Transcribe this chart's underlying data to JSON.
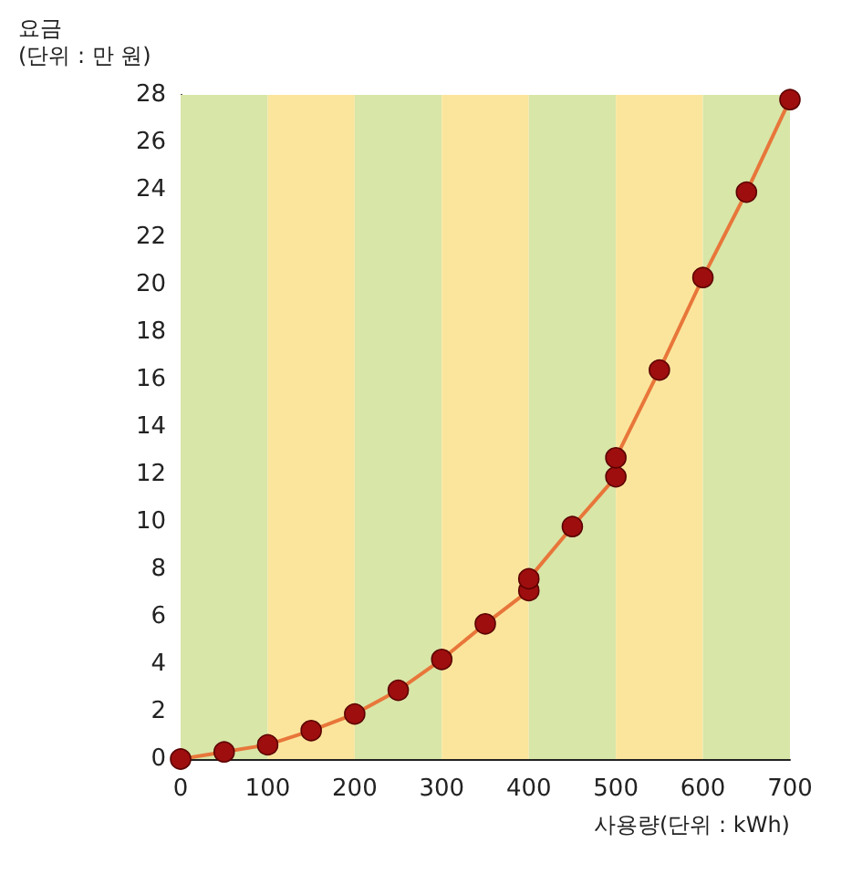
{
  "chart_data": {
    "type": "line",
    "ylabel": "요금\n(단위 : 만 원)",
    "xlabel": "사용량(단위 : kWh)",
    "xlim": [
      0,
      700
    ],
    "xticks": [
      0,
      100,
      200,
      300,
      400,
      500,
      600,
      700
    ],
    "ylim": [
      0,
      28
    ],
    "yticks": [
      0,
      2,
      4,
      6,
      8,
      10,
      12,
      14,
      16,
      18,
      20,
      22,
      24,
      26,
      28
    ],
    "grid": false,
    "marker": "circle",
    "line_style": "solid",
    "series": [
      {
        "color": "#e8763a",
        "x": [
          0,
          50,
          100,
          150,
          200,
          250,
          300,
          350,
          400,
          400,
          450,
          500,
          500,
          550,
          600,
          650,
          700
        ],
        "values": [
          0,
          0.3,
          0.6,
          1.2,
          1.9,
          2.9,
          4.2,
          5.7,
          7.1,
          7.6,
          9.8,
          11.9,
          12.7,
          16.4,
          20.3,
          23.9,
          27.8
        ],
        "colors": [
          "#9e0e0e",
          "#9e0e0e",
          "#9e0e0e",
          "#9e0e0e",
          "#9e0e0e",
          "#9e0e0e",
          "#9e0e0e",
          "#9e0e0e",
          "#9e0e0e",
          "#9e0e0e",
          "#9e0e0e",
          "#9e0e0e",
          "#9e0e0e",
          "#9e0e0e",
          "#9e0e0e",
          "#9e0e0e",
          "#9e0e0e"
        ]
      }
    ],
    "bands": [
      {
        "axis": "x",
        "from": 0,
        "to": 100,
        "color": "#d8e6a8"
      },
      {
        "axis": "x",
        "from": 100,
        "to": 200,
        "color": "#fbe59c"
      },
      {
        "axis": "x",
        "from": 200,
        "to": 300,
        "color": "#d8e6a8"
      },
      {
        "axis": "x",
        "from": 300,
        "to": 400,
        "color": "#fbe59c"
      },
      {
        "axis": "x",
        "from": 400,
        "to": 500,
        "color": "#d8e6a8"
      },
      {
        "axis": "x",
        "from": 500,
        "to": 600,
        "color": "#fbe59c"
      },
      {
        "axis": "x",
        "from": 600,
        "to": 700,
        "color": "#d8e6a8"
      }
    ]
  }
}
